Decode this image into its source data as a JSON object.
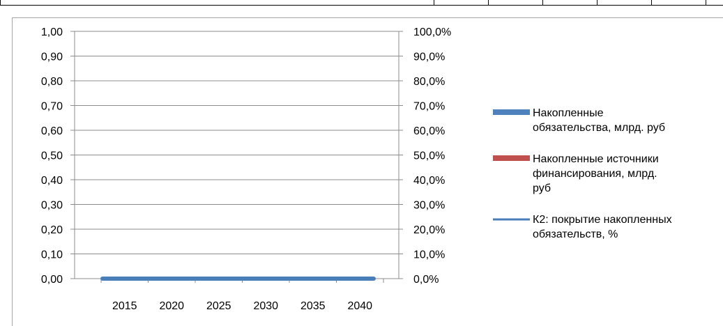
{
  "chart_data": {
    "type": "bar",
    "x_tick_labels": [
      "2015",
      "2020",
      "2025",
      "2030",
      "2035",
      "2040"
    ],
    "x_range": [
      2015,
      2040
    ],
    "y_left": {
      "range": [
        0,
        1
      ],
      "tick_labels": [
        "1,00",
        "0,90",
        "0,80",
        "0,70",
        "0,60",
        "0,50",
        "0,40",
        "0,30",
        "0,20",
        "0,10",
        "0,00"
      ],
      "label": ""
    },
    "y_right": {
      "range": [
        0,
        100
      ],
      "tick_labels": [
        "100,0%",
        "90,0%",
        "80,0%",
        "70,0%",
        "60,0%",
        "50,0%",
        "40,0%",
        "30,0%",
        "20,0%",
        "10,0%",
        "0,0%"
      ],
      "label": ""
    },
    "title": "",
    "xlabel": "",
    "grid": true,
    "legend_position": "right",
    "series": [
      {
        "name": "Накопленные обязательства, млрд. руб",
        "legend_lines": [
          "Накопленные",
          "обязательства, млрд. руб"
        ],
        "type": "bar",
        "axis": "left",
        "color": "#4f81bd",
        "values": [
          0,
          0,
          0,
          0,
          0,
          0
        ]
      },
      {
        "name": "Накопленные источники финансирования, млрд. руб",
        "legend_lines": [
          "Накопленные источники",
          "финансирования, млрд.",
          "руб"
        ],
        "type": "bar",
        "axis": "left",
        "color": "#c0504d",
        "values": [
          0,
          0,
          0,
          0,
          0,
          0
        ]
      },
      {
        "name": "К2: покрытие накопленных обязательств, %",
        "legend_lines": [
          "К2: покрытие накопленных",
          "обязательств, %"
        ],
        "type": "line",
        "axis": "right",
        "color": "#4a7ebb",
        "values": [
          0,
          0,
          0,
          0,
          0,
          0
        ]
      }
    ]
  }
}
